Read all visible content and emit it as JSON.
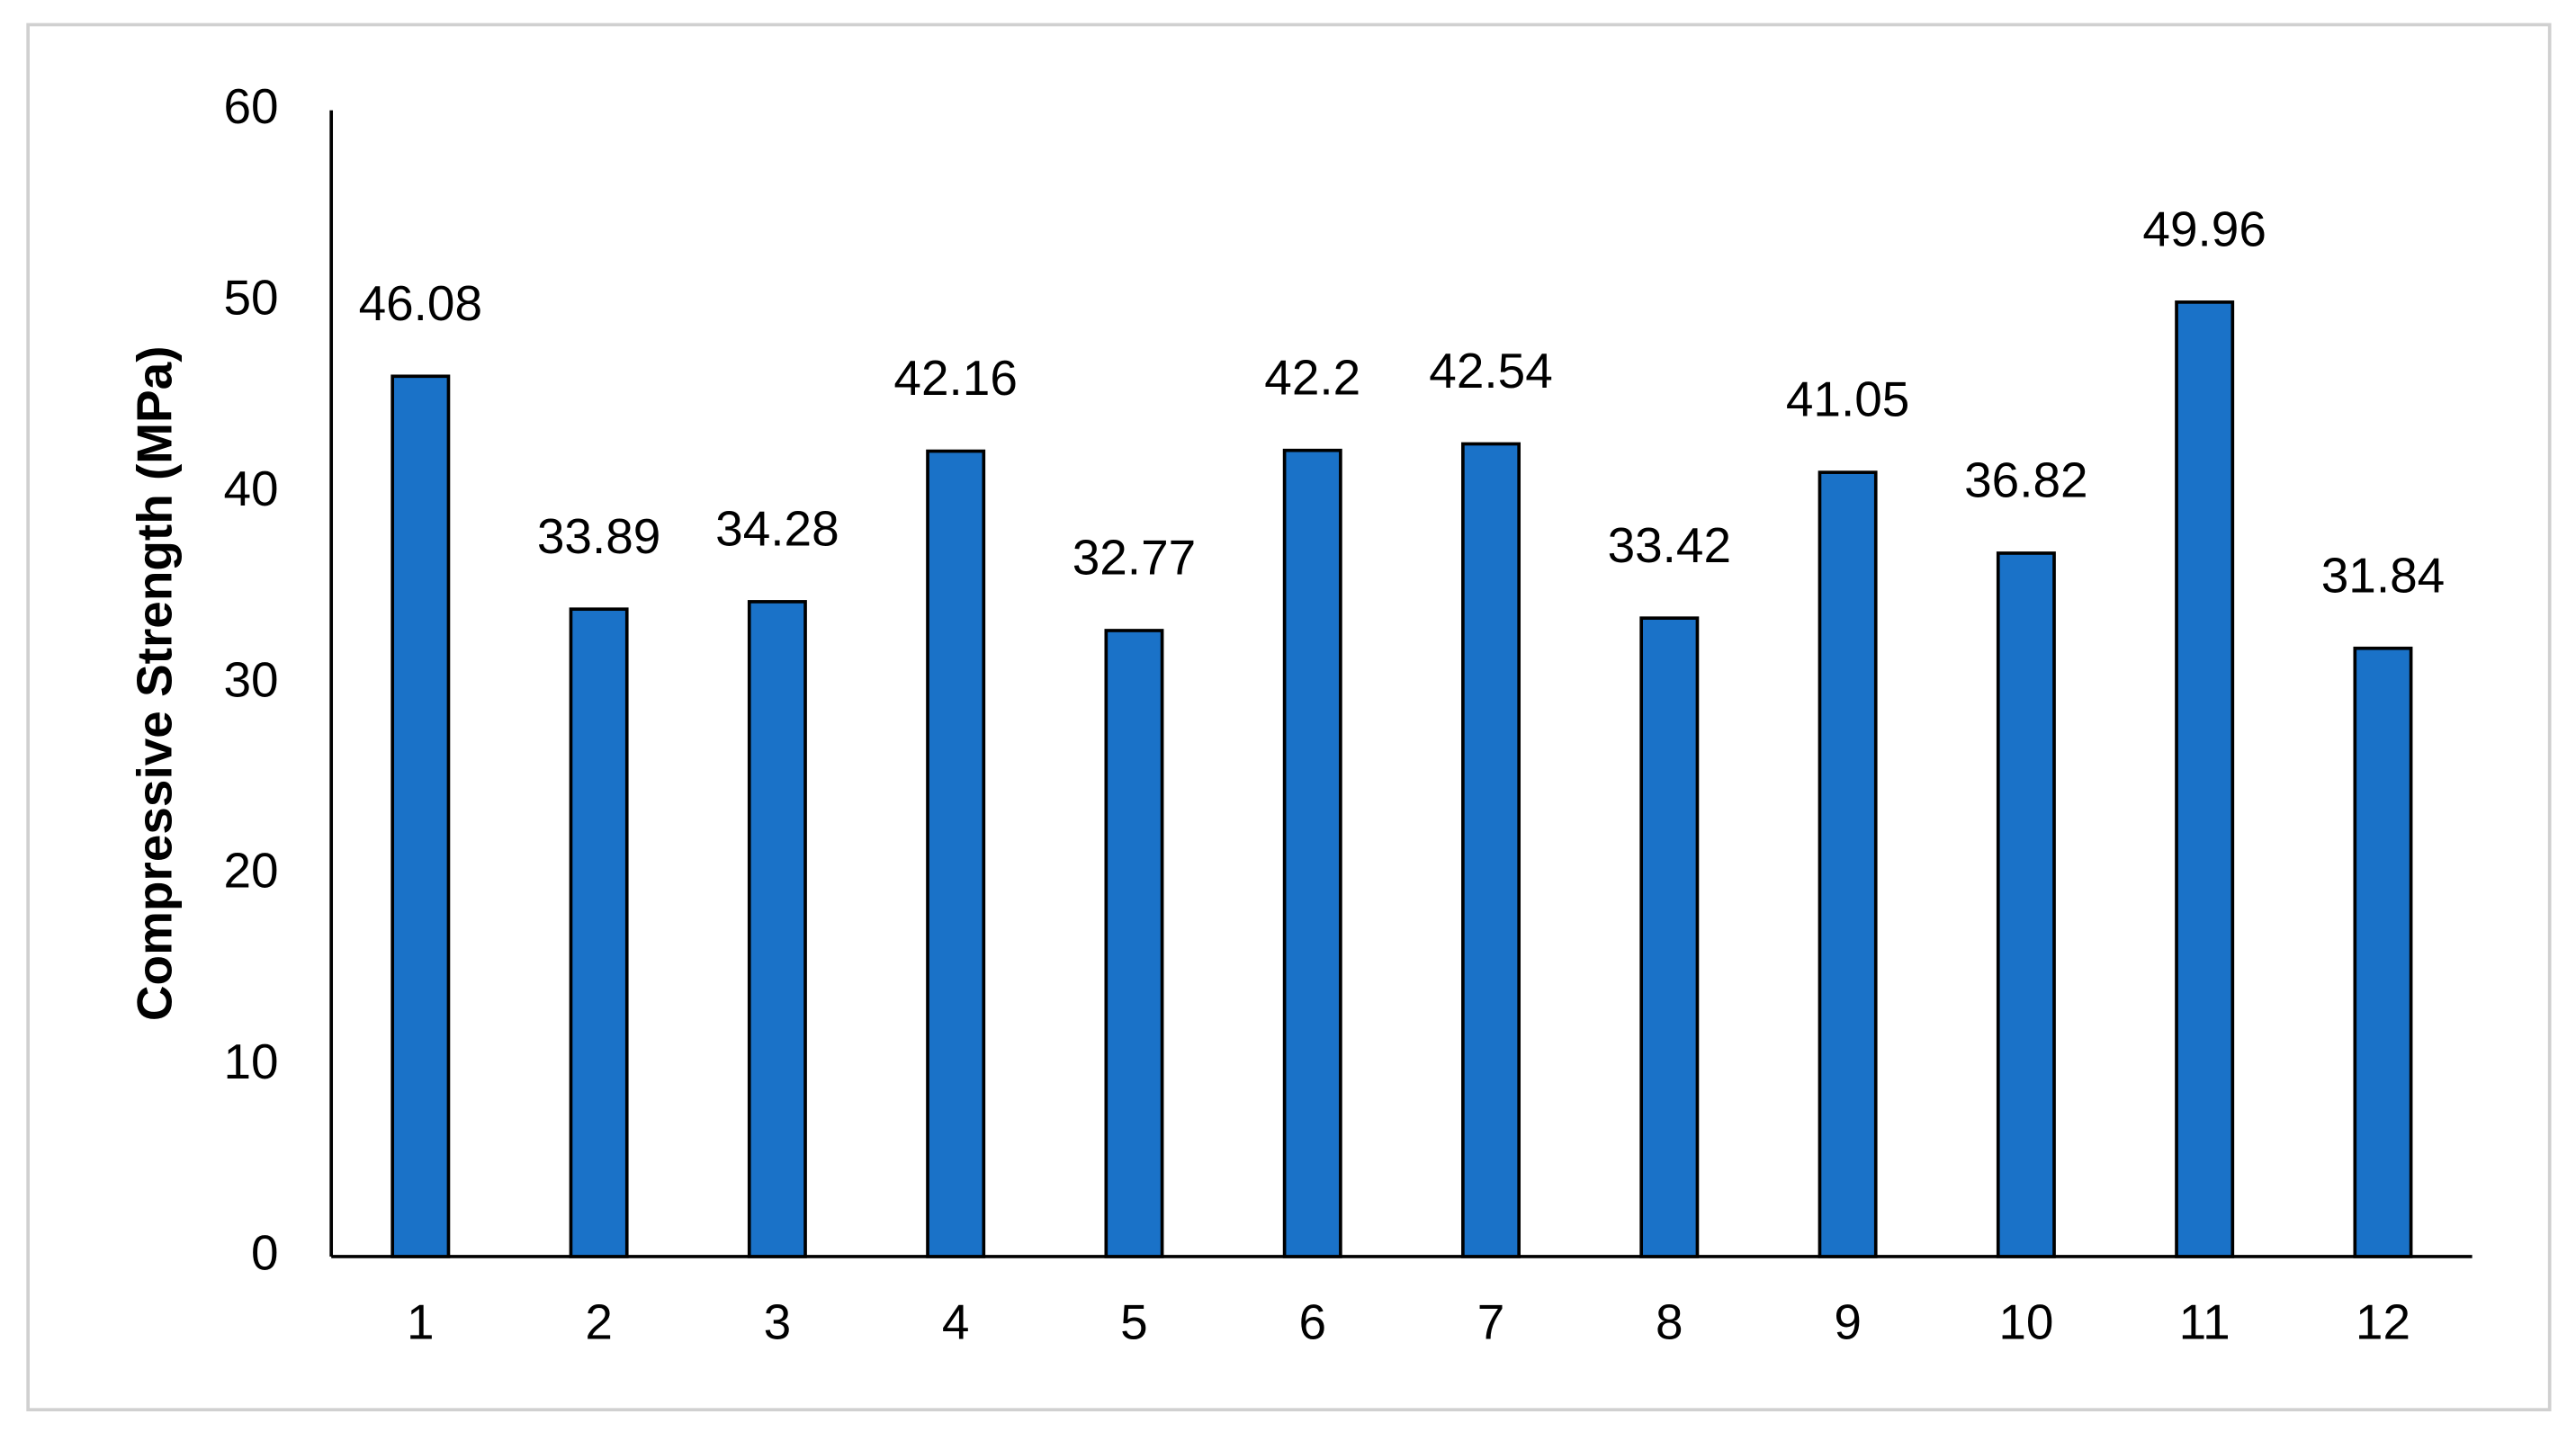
{
  "chart_data": {
    "type": "bar",
    "y_label": "Compressive Strength (MPa)",
    "categories": [
      "1",
      "2",
      "3",
      "4",
      "5",
      "6",
      "7",
      "8",
      "9",
      "10",
      "11",
      "12"
    ],
    "values": [
      46.08,
      33.89,
      34.28,
      42.16,
      32.77,
      42.2,
      42.54,
      33.42,
      41.05,
      36.82,
      49.96,
      31.84
    ],
    "color": "#1a72c8",
    "ylim": [
      0,
      60
    ],
    "yticks": [
      0,
      10,
      20,
      30,
      40,
      50,
      60
    ],
    "grid": false
  }
}
